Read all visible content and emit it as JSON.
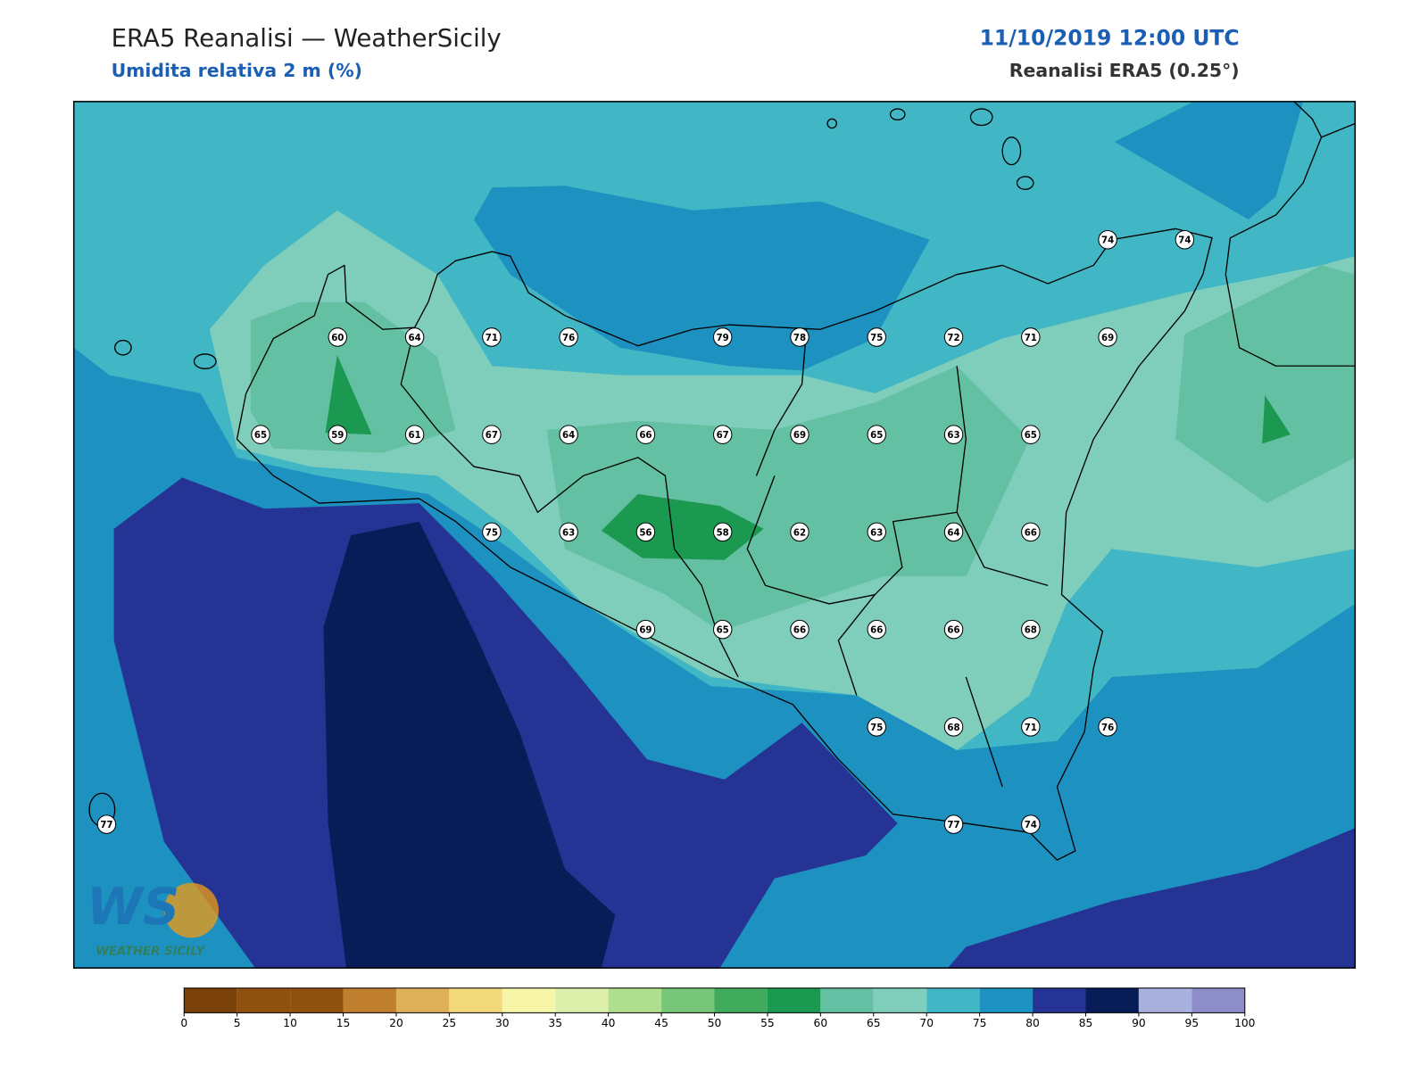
{
  "header": {
    "title": "ERA5 Reanalisi — WeatherSicily",
    "subtitle": "Umidita relativa 2 m (%)",
    "datetime": "11/10/2019 12:00 UTC",
    "source": "Reanalisi ERA5 (0.25°)"
  },
  "map": {
    "stations": [
      74,
      74,
      60,
      64,
      71,
      76,
      79,
      78,
      75,
      72,
      71,
      69,
      65,
      59,
      61,
      67,
      64,
      66,
      67,
      69,
      65,
      63,
      65,
      75,
      63,
      56,
      58,
      62,
      63,
      64,
      66,
      69,
      65,
      66,
      66,
      66,
      68,
      75,
      68,
      71,
      76,
      77,
      77,
      74
    ]
  },
  "colorbar": {
    "ticks": [
      0,
      5,
      10,
      15,
      20,
      25,
      30,
      35,
      40,
      45,
      50,
      55,
      60,
      65,
      70,
      75,
      80,
      85,
      90,
      95,
      100
    ],
    "colors": [
      "#7b410b",
      "#8f510f",
      "#8f510f",
      "#c07f2e",
      "#dfb05a",
      "#f2d97c",
      "#f6f5a8",
      "#dbeeaa",
      "#b0de8f",
      "#78c679",
      "#41ab5d",
      "#1c9950",
      "#63c0a3",
      "#7fcdbb",
      "#41b6c4",
      "#1d91c0",
      "#253494",
      "#081d58",
      "#a8b0dd",
      "#8d8dc9"
    ]
  },
  "logo": {
    "letters": "WS",
    "text": "WEATHER SICILY"
  }
}
